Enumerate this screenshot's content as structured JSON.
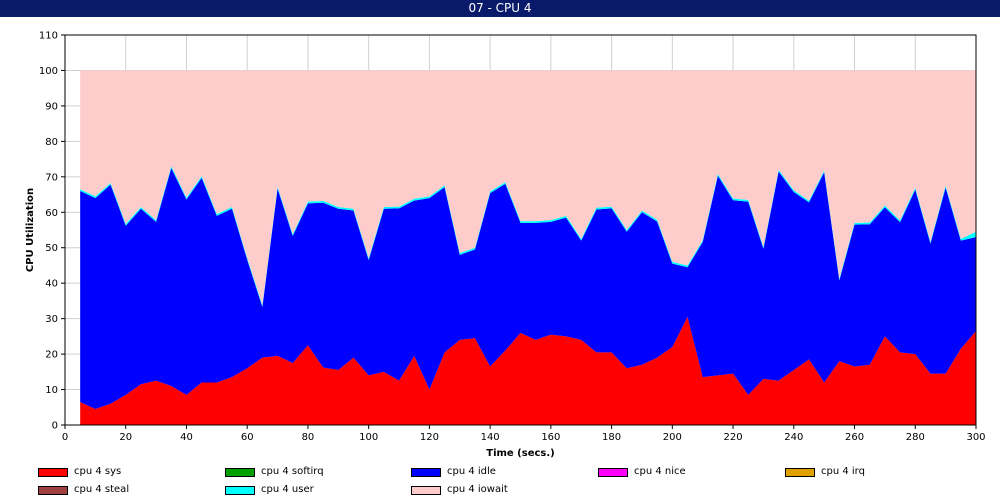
{
  "window": {
    "title": "07 - CPU 4"
  },
  "chart_data": {
    "type": "area",
    "stacked": true,
    "xlabel": "Time (secs.)",
    "ylabel": "CPU Utilization",
    "xlim": [
      0,
      300
    ],
    "ylim": [
      0,
      110
    ],
    "xticks": [
      0,
      20,
      40,
      60,
      80,
      100,
      120,
      140,
      160,
      180,
      200,
      220,
      240,
      260,
      280,
      300
    ],
    "yticks": [
      0,
      10,
      20,
      30,
      40,
      50,
      60,
      70,
      80,
      90,
      100,
      110
    ],
    "grid": true,
    "legend_position": "bottom",
    "x": [
      5,
      10,
      15,
      20,
      25,
      30,
      35,
      40,
      45,
      50,
      55,
      60,
      65,
      70,
      75,
      80,
      85,
      90,
      95,
      100,
      105,
      110,
      115,
      120,
      125,
      130,
      135,
      140,
      145,
      150,
      155,
      160,
      165,
      170,
      175,
      180,
      185,
      190,
      195,
      200,
      205,
      210,
      215,
      220,
      225,
      230,
      235,
      240,
      245,
      250,
      255,
      260,
      265,
      270,
      275,
      280,
      285,
      290,
      295,
      300
    ],
    "series": [
      {
        "name": "cpu 4 sys",
        "color": "#ff0000",
        "values": [
          6.5,
          4.5,
          6,
          8.5,
          11.5,
          12.5,
          11,
          8.5,
          12,
          12,
          13.5,
          16,
          19,
          19.5,
          17.5,
          22.5,
          16.2,
          15.5,
          19,
          14,
          15,
          12.5,
          19.5,
          10,
          20.5,
          24,
          24.5,
          16.5,
          21,
          26,
          24,
          25.5,
          25,
          24,
          20.5,
          20.5,
          16,
          17,
          19,
          22,
          30.5,
          13.5,
          14,
          14.5,
          8.5,
          13,
          12.5,
          15.5,
          18.5,
          12,
          18,
          16.5,
          17,
          25,
          20.5,
          20,
          14.5,
          14.5,
          21.5,
          26.5
        ]
      },
      {
        "name": "cpu 4 softirq",
        "color": "#00a000",
        "values": [
          0,
          0,
          0,
          0,
          0,
          0,
          0,
          0,
          0,
          0,
          0,
          0,
          0,
          0,
          0,
          0,
          0,
          0,
          0,
          0,
          0,
          0,
          0,
          0,
          0,
          0,
          0,
          0,
          0,
          0,
          0,
          0,
          0,
          0,
          0,
          0,
          0,
          0,
          0,
          0,
          0,
          0,
          0,
          0,
          0,
          0,
          0,
          0,
          0,
          0,
          0,
          0,
          0,
          0,
          0,
          0,
          0,
          0,
          0,
          0
        ]
      },
      {
        "name": "cpu 4 idle",
        "color": "#0000ff",
        "values": [
          59.5,
          59.5,
          61.8,
          47.7,
          49.5,
          44.8,
          61.5,
          55.1,
          57.7,
          47,
          47.5,
          30.6,
          14.3,
          47.2,
          35.8,
          40,
          46.5,
          45.5,
          41.5,
          32.5,
          46,
          48.6,
          43.8,
          54,
          46.6,
          24,
          25,
          48.9,
          47,
          31,
          33,
          31.8,
          33.5,
          28,
          40.3,
          40.6,
          38.5,
          43,
          38.4,
          23.5,
          14,
          38.1,
          56.3,
          48.9,
          54.5,
          36.7,
          59,
          50.2,
          44.3,
          59.3,
          22.8,
          40,
          39.6,
          36.4,
          36.7,
          46.4,
          36.7,
          52.5,
          30.5,
          26.5
        ]
      },
      {
        "name": "cpu 4 nice",
        "color": "#ff00ff",
        "values": [
          0,
          0,
          0,
          0,
          0,
          0,
          0,
          0,
          0,
          0,
          0,
          0,
          0,
          0,
          0,
          0,
          0,
          0,
          0,
          0,
          0,
          0,
          0,
          0,
          0,
          0,
          0,
          0,
          0,
          0,
          0,
          0,
          0,
          0,
          0,
          0,
          0,
          0,
          0,
          0,
          0,
          0,
          0,
          0,
          0,
          0,
          0,
          0,
          0,
          0,
          0,
          0,
          0,
          0,
          0,
          0,
          0,
          0,
          0,
          0
        ]
      },
      {
        "name": "cpu 4 irq",
        "color": "#e0a000",
        "values": [
          0,
          0,
          0,
          0,
          0,
          0,
          0,
          0,
          0,
          0,
          0,
          0,
          0,
          0,
          0,
          0,
          0,
          0,
          0,
          0,
          0,
          0,
          0,
          0,
          0,
          0,
          0,
          0,
          0,
          0,
          0,
          0,
          0,
          0,
          0,
          0,
          0,
          0,
          0,
          0,
          0,
          0,
          0,
          0,
          0,
          0,
          0,
          0,
          0,
          0,
          0,
          0,
          0,
          0,
          0,
          0,
          0,
          0,
          0,
          0
        ]
      },
      {
        "name": "cpu 4 steal",
        "color": "#a04040",
        "values": [
          0,
          0,
          0,
          0,
          0,
          0,
          0,
          0,
          0,
          0,
          0,
          0,
          0,
          0,
          0,
          0,
          0,
          0,
          0,
          0,
          0,
          0,
          0,
          0,
          0,
          0,
          0,
          0,
          0,
          0,
          0,
          0,
          0,
          0,
          0,
          0,
          0,
          0,
          0,
          0,
          0,
          0,
          0,
          0,
          0,
          0,
          0,
          0,
          0,
          0,
          0,
          0,
          0,
          0,
          0,
          0,
          0,
          0,
          0,
          0
        ]
      },
      {
        "name": "cpu 4 user",
        "color": "#00ffff",
        "values": [
          0.5,
          0.5,
          0.5,
          0.5,
          0.5,
          0.5,
          0.5,
          0.5,
          0.5,
          0.5,
          0.5,
          0.5,
          0.5,
          0.5,
          0.5,
          0.5,
          0.5,
          0.5,
          0.5,
          0.5,
          0.5,
          0.5,
          0.5,
          0.5,
          0.5,
          0.5,
          0.5,
          0.5,
          0.5,
          0.5,
          0.5,
          0.5,
          0.5,
          0.5,
          0.5,
          0.5,
          0.5,
          0.5,
          0.5,
          0.5,
          0.5,
          0.5,
          0.5,
          0.5,
          0.5,
          0.5,
          0.5,
          0.5,
          0.5,
          0.5,
          0.5,
          0.5,
          0.5,
          0.5,
          0.5,
          0.5,
          0.5,
          0.5,
          0.5,
          1.5
        ]
      },
      {
        "name": "cpu 4 iowait",
        "color": "#ffcccc",
        "values": [
          33.5,
          35.5,
          31.7,
          43.3,
          38.5,
          42.2,
          27,
          35.9,
          29.8,
          40.5,
          38.5,
          52.9,
          66.2,
          32.8,
          46.2,
          37,
          36.8,
          38.5,
          39,
          53,
          38.5,
          38.4,
          36.2,
          35.5,
          32.4,
          51.5,
          50,
          34.1,
          31.5,
          42.5,
          42.5,
          42.2,
          41,
          47.5,
          38.7,
          38.4,
          45,
          39.5,
          42.1,
          54,
          55,
          47.9,
          29.2,
          36.1,
          36.5,
          49.8,
          28,
          33.8,
          36.7,
          28.2,
          58.7,
          43,
          42.9,
          38.1,
          42.3,
          33.1,
          48.3,
          32.5,
          47.5,
          45.5
        ]
      }
    ]
  }
}
